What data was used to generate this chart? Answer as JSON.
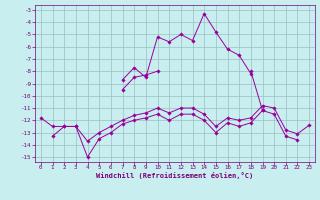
{
  "xlabel": "Windchill (Refroidissement éolien,°C)",
  "background_color": "#c8eef0",
  "grid_color": "#9bbfc0",
  "line_color": "#990099",
  "xlim": [
    -0.5,
    23.5
  ],
  "ylim": [
    -15.4,
    -2.6
  ],
  "xticks": [
    0,
    1,
    2,
    3,
    4,
    5,
    6,
    7,
    8,
    9,
    10,
    11,
    12,
    13,
    14,
    15,
    16,
    17,
    18,
    19,
    20,
    21,
    22,
    23
  ],
  "yticks": [
    -15,
    -14,
    -13,
    -12,
    -11,
    -10,
    -9,
    -8,
    -7,
    -6,
    -5,
    -4,
    -3
  ],
  "series": [
    [
      null,
      -13.3,
      -12.5,
      -12.5,
      -15.0,
      -13.5,
      -13.0,
      -12.3,
      -12.0,
      -11.8,
      -11.5,
      -12.0,
      -11.5,
      -11.5,
      -12.0,
      -13.0,
      -12.2,
      -12.5,
      -12.2,
      -11.2,
      -11.5,
      -13.3,
      -13.6,
      null
    ],
    [
      null,
      null,
      null,
      null,
      null,
      null,
      null,
      -8.7,
      -7.7,
      -8.5,
      -5.2,
      -5.6,
      -5.0,
      -5.5,
      -3.3,
      -4.8,
      -6.2,
      -6.7,
      -8.2,
      null,
      null,
      null,
      null,
      null
    ],
    [
      null,
      null,
      null,
      null,
      null,
      null,
      null,
      -9.5,
      -8.5,
      -8.3,
      -8.0,
      null,
      null,
      null,
      null,
      null,
      null,
      null,
      -8.0,
      -11.2,
      null,
      null,
      null,
      null
    ],
    [
      -11.8,
      -12.5,
      -12.5,
      -12.5,
      -13.7,
      -13.0,
      -12.5,
      -12.0,
      -11.6,
      -11.4,
      -11.0,
      -11.4,
      -11.0,
      -11.0,
      -11.5,
      -12.5,
      -11.8,
      -12.0,
      -11.8,
      -10.8,
      -11.0,
      -12.8,
      -13.1,
      -12.4
    ]
  ]
}
